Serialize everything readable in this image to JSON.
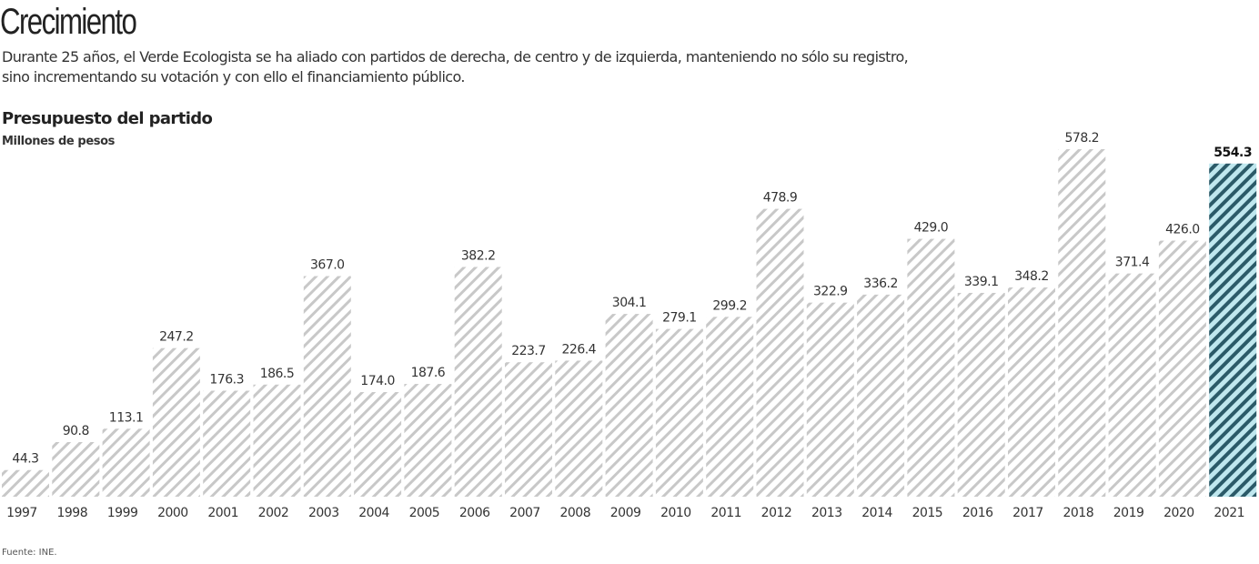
{
  "title": "Crecimiento",
  "subtitle": "Durante 25 años, el Verde Ecologista se ha aliado con partidos de derecha, de centro y de izquierda, manteniendo no sólo su registro, sino incrementando su votación y con ello el financiamiento público.",
  "source": "Fuente: INE.",
  "colors": {
    "bar_hatch": "#c8c8c8",
    "highlight_hatch": "#2b5a68",
    "highlight_fill": "#bfe7ee",
    "text": "#333333"
  },
  "chart_data": {
    "type": "bar",
    "title": "Presupuesto del partido",
    "ylabel": "Millones de pesos",
    "xlabel": "",
    "categories": [
      "1997",
      "1998",
      "1999",
      "2000",
      "2001",
      "2002",
      "2003",
      "2004",
      "2005",
      "2006",
      "2007",
      "2008",
      "2009",
      "2010",
      "2011",
      "2012",
      "2013",
      "2014",
      "2015",
      "2016",
      "2017",
      "2018",
      "2019",
      "2020",
      "2021"
    ],
    "values": [
      44.3,
      90.8,
      113.1,
      247.2,
      176.3,
      186.5,
      367.0,
      174.0,
      187.6,
      382.2,
      223.7,
      226.4,
      304.1,
      279.1,
      299.2,
      478.9,
      322.9,
      336.2,
      429.0,
      339.1,
      348.2,
      578.2,
      371.4,
      426.0,
      554.3
    ],
    "labels": [
      "44.3",
      "90.8",
      "113.1",
      "247.2",
      "176.3",
      "186.5",
      "367.0",
      "174.0",
      "187.6",
      "382.2",
      "223.7",
      "226.4",
      "304.1",
      "279.1",
      "299.2",
      "478.9",
      "322.9",
      "336.2",
      "429.0",
      "339.1",
      "348.2",
      "578.2",
      "371.4",
      "426.0",
      "554.3"
    ],
    "highlight": "2021",
    "ylim": [
      0,
      600
    ],
    "grid": false,
    "legend": "none"
  }
}
